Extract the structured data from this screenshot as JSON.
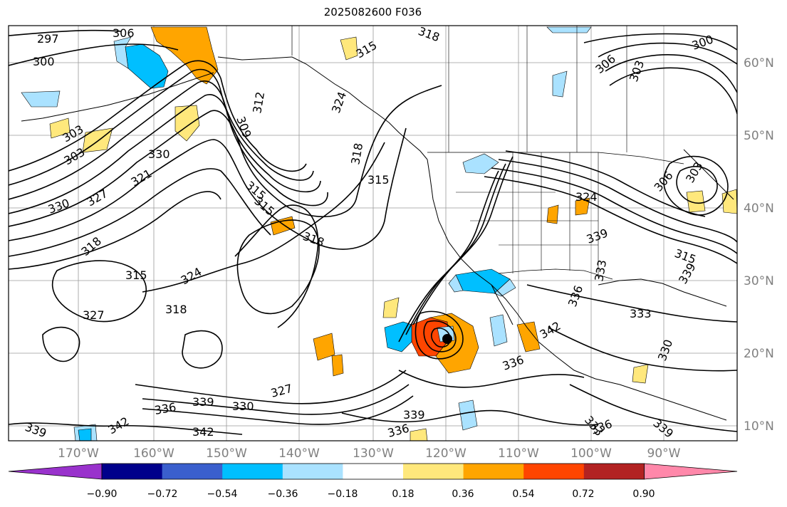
{
  "title": "2025082600 F036",
  "map": {
    "lon_labels": [
      "170°W",
      "160°W",
      "150°W",
      "140°W",
      "130°W",
      "120°W",
      "110°W",
      "100°W",
      "90°W"
    ],
    "lat_labels": [
      "60°N",
      "50°N",
      "40°N",
      "30°N",
      "20°N",
      "10°N"
    ],
    "colors": {
      "frame": "#000000",
      "grid": "#9a9a9a",
      "axis_label": "#808080",
      "contour": "#000000",
      "coast": "#000000"
    },
    "contour_labels": [
      {
        "id": "c297",
        "text": "297"
      },
      {
        "id": "c300a",
        "text": "300"
      },
      {
        "id": "c306a",
        "text": "306"
      },
      {
        "id": "c303a",
        "text": "303"
      },
      {
        "id": "c303b",
        "text": "303"
      },
      {
        "id": "c330a",
        "text": "330"
      },
      {
        "id": "c327a",
        "text": "327"
      },
      {
        "id": "c321a",
        "text": "321"
      },
      {
        "id": "c330b",
        "text": "330"
      },
      {
        "id": "c309a",
        "text": "309"
      },
      {
        "id": "c312a",
        "text": "312"
      },
      {
        "id": "c315a",
        "text": "315"
      },
      {
        "id": "c318a",
        "text": "318"
      },
      {
        "id": "c315b",
        "text": "315"
      },
      {
        "id": "c318b",
        "text": "318"
      },
      {
        "id": "c324a",
        "text": "324"
      },
      {
        "id": "c315c",
        "text": "315"
      },
      {
        "id": "c318c",
        "text": "318"
      },
      {
        "id": "c315d",
        "text": "315"
      },
      {
        "id": "c324b",
        "text": "324"
      },
      {
        "id": "c327b",
        "text": "327"
      },
      {
        "id": "c318d",
        "text": "318"
      },
      {
        "id": "c339a",
        "text": "339"
      },
      {
        "id": "c336a",
        "text": "336"
      },
      {
        "id": "c342a",
        "text": "342"
      },
      {
        "id": "c339b",
        "text": "339"
      },
      {
        "id": "c330c",
        "text": "330"
      },
      {
        "id": "c327c",
        "text": "327"
      },
      {
        "id": "c339c",
        "text": "339"
      },
      {
        "id": "c336b",
        "text": "336"
      },
      {
        "id": "c342b",
        "text": "342"
      },
      {
        "id": "c336c",
        "text": "336"
      },
      {
        "id": "c342c",
        "text": "342"
      },
      {
        "id": "c339d",
        "text": "339"
      },
      {
        "id": "c333a",
        "text": "333"
      },
      {
        "id": "c336d",
        "text": "336"
      },
      {
        "id": "c333b",
        "text": "333"
      },
      {
        "id": "c330d",
        "text": "330"
      },
      {
        "id": "c333c",
        "text": "333"
      },
      {
        "id": "c336e",
        "text": "336"
      },
      {
        "id": "c339e",
        "text": "339"
      },
      {
        "id": "c315e",
        "text": "315"
      },
      {
        "id": "c324c",
        "text": "324"
      },
      {
        "id": "c339f",
        "text": "339"
      },
      {
        "id": "c306b",
        "text": "306"
      },
      {
        "id": "c303c",
        "text": "303"
      },
      {
        "id": "c300b",
        "text": "300"
      },
      {
        "id": "c318e",
        "text": "318"
      },
      {
        "id": "c315f",
        "text": "315"
      },
      {
        "id": "c306c",
        "text": "306"
      },
      {
        "id": "c303d",
        "text": "303"
      }
    ]
  },
  "colorbar": {
    "tick_labels": [
      "−0.90",
      "−0.72",
      "−0.54",
      "−0.36",
      "−0.18",
      "0.18",
      "0.36",
      "0.54",
      "0.72",
      "0.90"
    ],
    "bin_colors": [
      "#9932cc",
      "#00008b",
      "#3a5fcd",
      "#00bfff",
      "#aae2ff",
      "#ffffff",
      "#ffe87c",
      "#ffa500",
      "#ff4500",
      "#b22222",
      "#ff88aa"
    ]
  }
}
